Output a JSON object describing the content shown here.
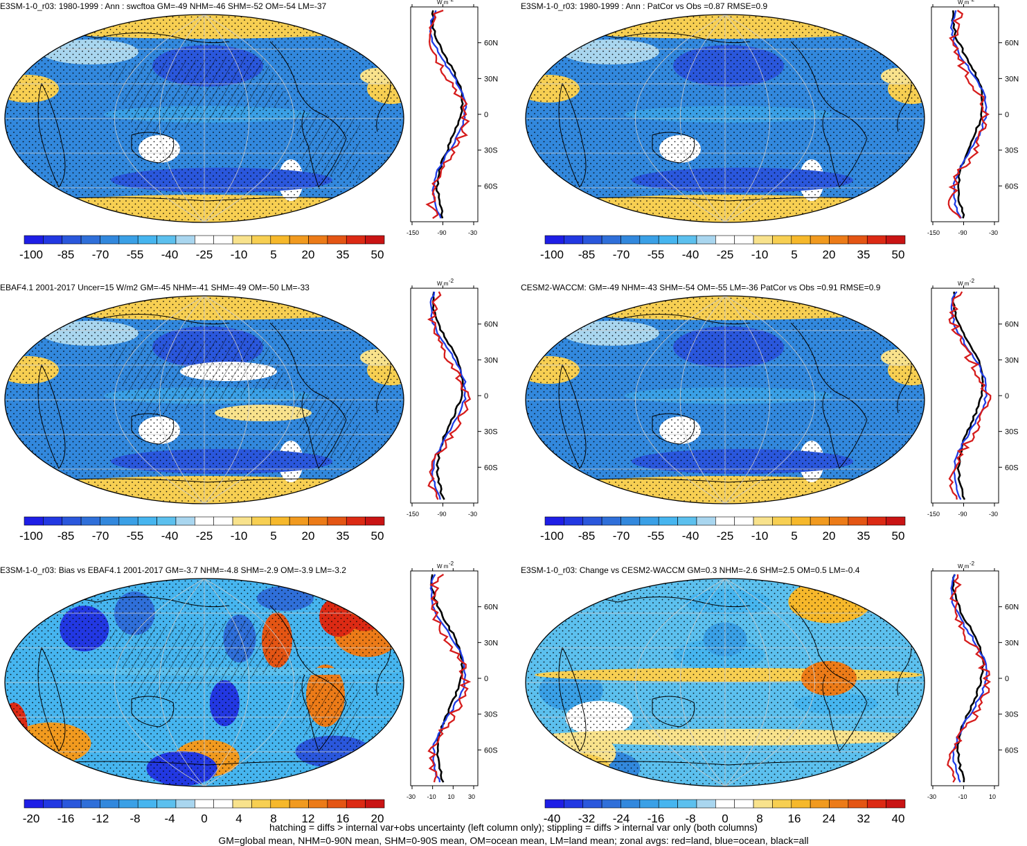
{
  "colors": {
    "ramp": [
      "#1e1ee6",
      "#2238e2",
      "#2a57dc",
      "#2f6fd9",
      "#3288dd",
      "#3aa0e6",
      "#46b5ef",
      "#5cc0ee",
      "#a9d6ef",
      "#ffffff",
      "#ffffff",
      "#f8e28c",
      "#f7cf52",
      "#f6b82b",
      "#f19a1f",
      "#ec7b18",
      "#e45514",
      "#dc2a14",
      "#c91414"
    ],
    "land_line": "#d61c1c",
    "ocean_line": "#1e3ce6",
    "all_line": "#000000"
  },
  "colorbar_a": {
    "labels": [
      "-100",
      "-85",
      "-70",
      "-55",
      "-40",
      "-25",
      "-10",
      "5",
      "20",
      "35",
      "50"
    ]
  },
  "colorbar_bias": {
    "labels": [
      "-20",
      "-16",
      "-12",
      "-8",
      "-4",
      "0",
      "4",
      "8",
      "12",
      "16",
      "20"
    ]
  },
  "colorbar_change": {
    "labels": [
      "-40",
      "-32",
      "-24",
      "-16",
      "-8",
      "0",
      "8",
      "16",
      "24",
      "32",
      "40"
    ]
  },
  "zonal_lat_labels": [
    "60N",
    "30N",
    "0",
    "30S",
    "60S"
  ],
  "zonal_unit": "W m",
  "zonal_unit_sup": "-2",
  "ticks_wide": [
    "-150",
    "-90",
    "-30"
  ],
  "ticks_narrow": [
    "-30",
    "-10",
    "10",
    "30"
  ],
  "ticks_narrow2": [
    "-30",
    "-10",
    "10"
  ],
  "panels": [
    {
      "title": "E3SM-1-0_r03: 1980-1999 : Ann : swcftoa GM=-49 NHM=-46 SHM=-52 OM=-54 LM=-37",
      "map_style": "model"
    },
    {
      "title": "E3SM-1-0_r03: 1980-1999 : Ann : PatCor vs Obs =0.87 RMSE=0.9",
      "map_style": "model"
    },
    {
      "title": "EBAF4.1 2001-2017 Uncer=15 W/m2 GM=-45 NHM=-41 SHM=-49 OM=-50 LM=-33",
      "map_style": "obs"
    },
    {
      "title": "CESM2-WACCM: GM=-49 NHM=-43 SHM=-54 OM=-55 LM=-36 PatCor vs Obs =0.91 RMSE=0.9",
      "map_style": "model"
    },
    {
      "title": "E3SM-1-0_r03: Bias vs EBAF4.1 2001-2017 GM=-3.7 NHM=-4.8 SHM=-2.9 OM=-3.9 LM=-3.2",
      "map_style": "bias"
    },
    {
      "title": "E3SM-1-0_r03: Change vs CESM2-WACCM GM=0.3 NHM=-2.6 SHM=2.5 OM=0.5 LM=-0.4",
      "map_style": "change"
    }
  ],
  "footer": {
    "line1": "hatching = diffs > internal var+obs uncertainty (left column only); stippling = diffs > internal var only (both columns)",
    "line2": "GM=global mean, NHM=0-90N mean, SHM=0-90S mean, OM=ocean mean, LM=land mean; zonal avgs: red=land, blue=ocean, black=all"
  }
}
